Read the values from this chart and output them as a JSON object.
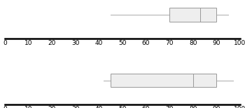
{
  "plot1": {
    "whisker_low": 45,
    "q1": 70,
    "median": 83,
    "q3": 90,
    "whisker_high": 95
  },
  "plot2": {
    "whisker_low": 42,
    "q1": 45,
    "median": 80,
    "q3": 90,
    "whisker_high": 97
  },
  "xmin": 0,
  "xmax": 100,
  "xticks": [
    0,
    10,
    20,
    30,
    40,
    50,
    60,
    70,
    80,
    90,
    100
  ],
  "box_color": "#eeeeee",
  "box_edge_color": "#999999",
  "whisker_color": "#aaaaaa",
  "line_color": "#000000",
  "tick_fontsize": 6.5
}
